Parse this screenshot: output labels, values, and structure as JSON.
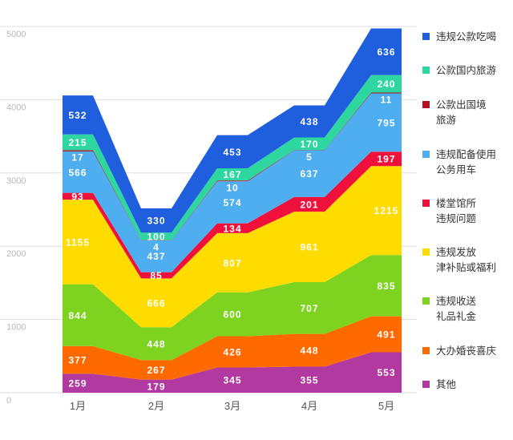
{
  "chart_data": {
    "type": "area",
    "stacked": true,
    "categories": [
      "1月",
      "2月",
      "3月",
      "4月",
      "5月"
    ],
    "ylim": [
      0,
      5000
    ],
    "yticks": [
      0,
      1000,
      2000,
      3000,
      4000,
      5000
    ],
    "grid": true,
    "legend_position": "right",
    "series": [
      {
        "name": "其他",
        "color": "#b2399f",
        "values": [
          259,
          179,
          345,
          355,
          553
        ]
      },
      {
        "name": "大办婚丧喜庆",
        "color": "#ff6a00",
        "values": [
          377,
          267,
          426,
          448,
          491
        ]
      },
      {
        "name": "违规收送\n礼品礼金",
        "color": "#7ed321",
        "values": [
          844,
          448,
          600,
          707,
          835
        ]
      },
      {
        "name": "违规发放\n津补贴或福利",
        "color": "#ffdc00",
        "values": [
          1155,
          666,
          807,
          961,
          1215
        ]
      },
      {
        "name": "楼堂馆所\n违规问题",
        "color": "#f0103c",
        "values": [
          93,
          85,
          134,
          201,
          197
        ]
      },
      {
        "name": "违规配备使用\n公务用车",
        "color": "#4eaef0",
        "values": [
          566,
          437,
          574,
          637,
          795
        ]
      },
      {
        "name": "公款出国境\n旅游",
        "color": "#b5101e",
        "values": [
          17,
          4,
          10,
          5,
          11
        ]
      },
      {
        "name": "公款国内旅游",
        "color": "#2ed6a0",
        "values": [
          215,
          100,
          167,
          170,
          240
        ]
      },
      {
        "name": "违规公款吃喝",
        "color": "#1f5fdd",
        "values": [
          532,
          330,
          453,
          438,
          636
        ]
      }
    ]
  }
}
